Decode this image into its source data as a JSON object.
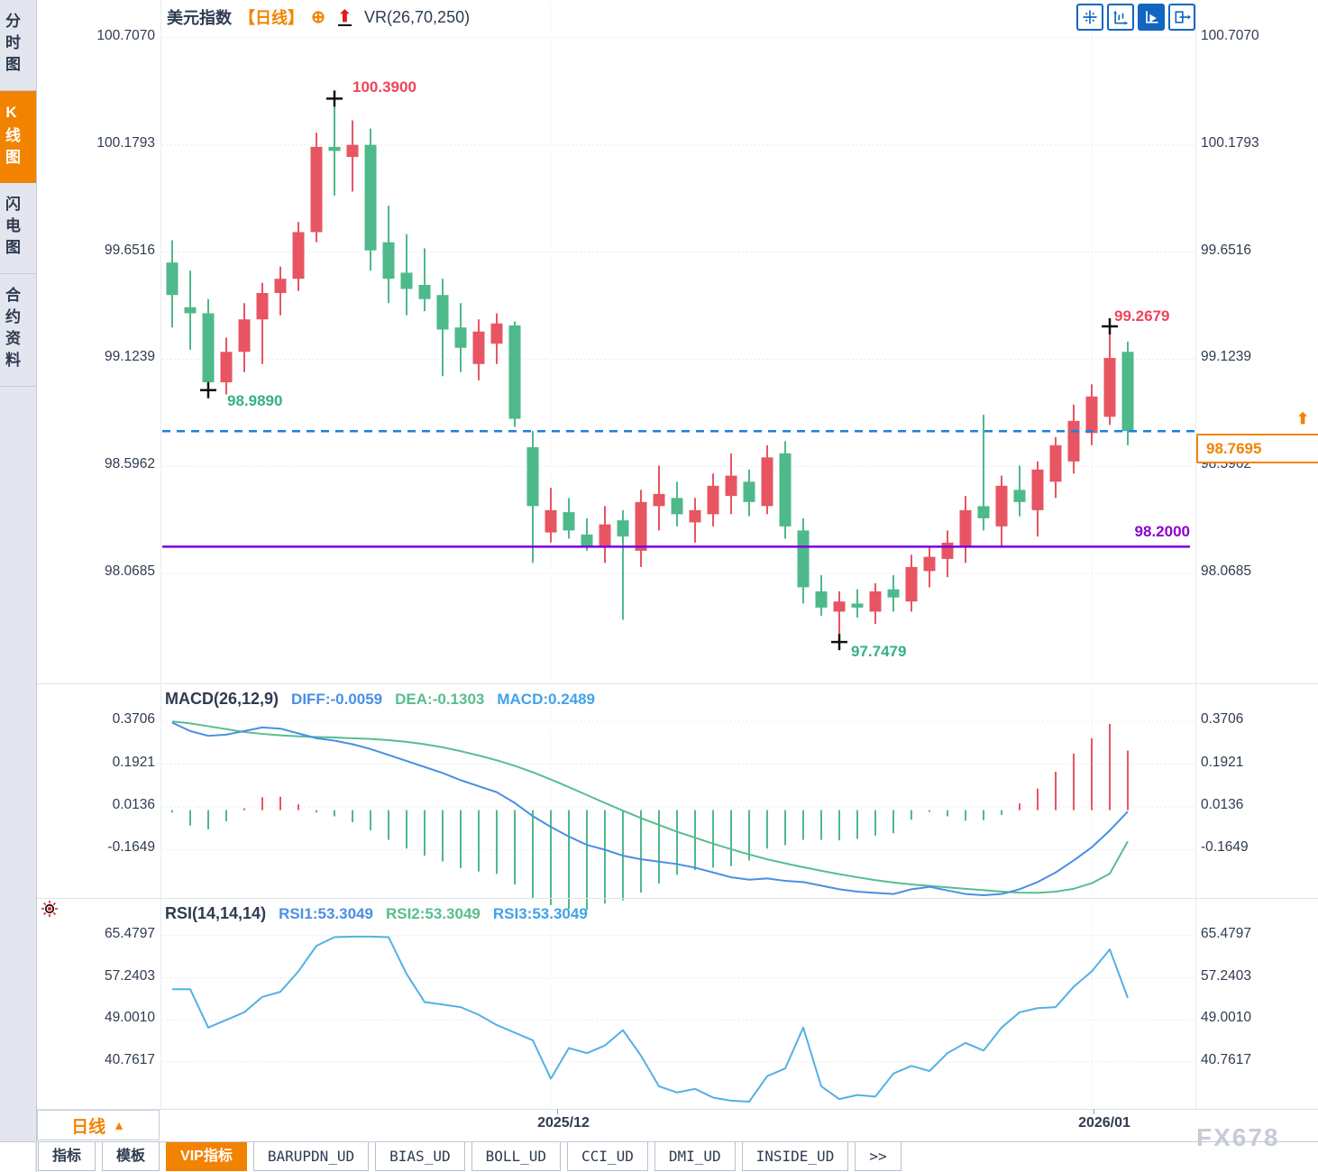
{
  "header": {
    "symbol": "美元指数",
    "period_tag": "【日线】",
    "add_icon": "⊕",
    "arrow_icon": "⬆",
    "indicator": "VR(26,70,250)"
  },
  "sidebar": {
    "items": [
      {
        "label": "分时图",
        "active": false
      },
      {
        "label": "K线图",
        "active": true
      },
      {
        "label": "闪电图",
        "active": false
      },
      {
        "label": "合约资料",
        "active": false
      }
    ]
  },
  "toolbar": {
    "icons": [
      "crosshair-move",
      "axis-zoom",
      "auto-fit",
      "pan-right"
    ],
    "active_index": 2
  },
  "price_axis": {
    "labels": [
      "100.7070",
      "100.1793",
      "99.6516",
      "99.1239",
      "98.5962",
      "98.0685"
    ]
  },
  "macd_panel": {
    "title": "MACD(26,12,9)",
    "diff_label": "DIFF:-0.0059",
    "dea_label": "DEA:-0.1303",
    "macd_label": "MACD:0.2489",
    "axis_labels": [
      "0.3706",
      "0.1921",
      "0.0136",
      "-0.1649"
    ]
  },
  "rsi_panel": {
    "title": "RSI(14,14,14)",
    "rsi1_label": "RSI1:53.3049",
    "rsi2_label": "RSI2:53.3049",
    "rsi3_label": "RSI3:53.3049",
    "axis_labels": [
      "65.4797",
      "57.2403",
      "49.0010",
      "40.7617"
    ]
  },
  "annotations": {
    "peak_high": "100.3900",
    "early_low": "98.9890",
    "trough_low": "97.7479",
    "recent_high": "99.2679",
    "support_level": "98.2000",
    "last_price": "98.7695",
    "price_arrow": "⬆"
  },
  "bottom": {
    "period": "日线",
    "period_arrow": "▲",
    "x_ticks": [
      "2025/12",
      "2026/01"
    ]
  },
  "tabs": [
    {
      "label": "指标",
      "active": false
    },
    {
      "label": "模板",
      "active": false
    },
    {
      "label": "VIP指标",
      "active": true
    },
    {
      "label": "BARUPDN_UD",
      "active": false
    },
    {
      "label": "BIAS_UD",
      "active": false
    },
    {
      "label": "BOLL_UD",
      "active": false
    },
    {
      "label": "CCI_UD",
      "active": false
    },
    {
      "label": "DMI_UD",
      "active": false
    },
    {
      "label": "INSIDE_UD",
      "active": false
    },
    {
      "label": ">>",
      "active": false
    }
  ],
  "watermark": "FX678",
  "colors": {
    "up": "#e85562",
    "down": "#4eb98b",
    "accent_orange": "#f28300",
    "last_price_blue": "#1a7fe8",
    "support_purple": "#7d00d8",
    "diff_blue": "#4a8fe3",
    "dea_green": "#57bd8f",
    "rsi_cyan": "#54b0e6",
    "grid": "#e4e4e4",
    "marker_black": "#111111"
  },
  "chart_data": [
    {
      "type": "candlestick",
      "title": "美元指数 日线",
      "ylabel": "price",
      "ylim": [
        97.6,
        100.85
      ],
      "gridlines": [
        100.707,
        100.1793,
        99.6516,
        99.1239,
        98.5962,
        98.0685
      ],
      "x_ticks": [
        "2025/12",
        "2026/01"
      ],
      "month_tick_indices": [
        21,
        51
      ],
      "last_price": 98.7695,
      "support_line": 98.2,
      "markers": [
        {
          "index": 2,
          "price": 98.989,
          "side": "low",
          "label": "98.9890"
        },
        {
          "index": 9,
          "price": 100.39,
          "side": "high",
          "label": "100.3900"
        },
        {
          "index": 37,
          "price": 97.7479,
          "side": "low",
          "label": "97.7479"
        },
        {
          "index": 52,
          "price": 99.2679,
          "side": "high",
          "label": "99.2679"
        }
      ],
      "ohlc": [
        [
          99.6,
          99.71,
          99.28,
          99.44
        ],
        [
          99.38,
          99.56,
          99.17,
          99.35
        ],
        [
          99.35,
          99.42,
          98.989,
          99.01
        ],
        [
          99.01,
          99.23,
          98.95,
          99.16
        ],
        [
          99.16,
          99.4,
          99.06,
          99.32
        ],
        [
          99.32,
          99.5,
          99.1,
          99.45
        ],
        [
          99.45,
          99.58,
          99.34,
          99.52
        ],
        [
          99.52,
          99.8,
          99.46,
          99.75
        ],
        [
          99.75,
          100.24,
          99.7,
          100.17
        ],
        [
          100.17,
          100.39,
          99.93,
          100.15
        ],
        [
          100.12,
          100.3,
          99.95,
          100.18
        ],
        [
          100.18,
          100.26,
          99.56,
          99.66
        ],
        [
          99.7,
          99.88,
          99.4,
          99.52
        ],
        [
          99.55,
          99.74,
          99.34,
          99.47
        ],
        [
          99.49,
          99.67,
          99.36,
          99.42
        ],
        [
          99.44,
          99.52,
          99.04,
          99.27
        ],
        [
          99.28,
          99.4,
          99.06,
          99.18
        ],
        [
          99.1,
          99.32,
          99.02,
          99.26
        ],
        [
          99.2,
          99.35,
          99.1,
          99.3
        ],
        [
          99.29,
          99.31,
          98.79,
          98.83
        ],
        [
          98.69,
          98.77,
          98.12,
          98.4
        ],
        [
          98.27,
          98.49,
          98.22,
          98.38
        ],
        [
          98.37,
          98.44,
          98.24,
          98.28
        ],
        [
          98.26,
          98.34,
          98.18,
          98.2
        ],
        [
          98.2,
          98.4,
          98.12,
          98.31
        ],
        [
          98.33,
          98.38,
          97.84,
          98.25
        ],
        [
          98.18,
          98.48,
          98.1,
          98.42
        ],
        [
          98.4,
          98.6,
          98.28,
          98.46
        ],
        [
          98.44,
          98.52,
          98.3,
          98.36
        ],
        [
          98.32,
          98.44,
          98.22,
          98.38
        ],
        [
          98.36,
          98.56,
          98.3,
          98.5
        ],
        [
          98.45,
          98.66,
          98.36,
          98.55
        ],
        [
          98.52,
          98.58,
          98.35,
          98.42
        ],
        [
          98.4,
          98.7,
          98.36,
          98.64
        ],
        [
          98.66,
          98.72,
          98.24,
          98.3
        ],
        [
          98.28,
          98.34,
          97.92,
          98.0
        ],
        [
          97.98,
          98.06,
          97.86,
          97.9
        ],
        [
          97.88,
          97.98,
          97.7479,
          97.93
        ],
        [
          97.92,
          97.99,
          97.85,
          97.9
        ],
        [
          97.88,
          98.02,
          97.82,
          97.98
        ],
        [
          97.99,
          98.06,
          97.88,
          97.95
        ],
        [
          97.93,
          98.16,
          97.88,
          98.1
        ],
        [
          98.08,
          98.2,
          98.0,
          98.15
        ],
        [
          98.14,
          98.28,
          98.05,
          98.22
        ],
        [
          98.2,
          98.45,
          98.12,
          98.38
        ],
        [
          98.4,
          98.85,
          98.28,
          98.34
        ],
        [
          98.3,
          98.55,
          98.2,
          98.5
        ],
        [
          98.48,
          98.6,
          98.35,
          98.42
        ],
        [
          98.38,
          98.62,
          98.25,
          98.58
        ],
        [
          98.52,
          98.74,
          98.44,
          98.7
        ],
        [
          98.62,
          98.9,
          98.56,
          98.82
        ],
        [
          98.76,
          99.0,
          98.7,
          98.94
        ],
        [
          98.84,
          99.2679,
          98.8,
          99.13
        ],
        [
          99.16,
          99.21,
          98.7,
          98.7695
        ]
      ]
    },
    {
      "type": "macd",
      "title": "MACD(26,12,9)",
      "gridlines": [
        0.3706,
        0.1921,
        0.0136,
        -0.1649
      ],
      "diff": [
        0.365,
        0.33,
        0.31,
        0.315,
        0.33,
        0.345,
        0.34,
        0.32,
        0.3,
        0.29,
        0.275,
        0.255,
        0.23,
        0.205,
        0.18,
        0.155,
        0.125,
        0.1,
        0.075,
        0.03,
        -0.025,
        -0.07,
        -0.11,
        -0.145,
        -0.165,
        -0.19,
        -0.205,
        -0.215,
        -0.225,
        -0.24,
        -0.26,
        -0.28,
        -0.29,
        -0.285,
        -0.295,
        -0.3,
        -0.315,
        -0.33,
        -0.34,
        -0.345,
        -0.35,
        -0.33,
        -0.32,
        -0.335,
        -0.35,
        -0.355,
        -0.35,
        -0.33,
        -0.3,
        -0.26,
        -0.21,
        -0.155,
        -0.085,
        -0.0059
      ],
      "dea": [
        0.37,
        0.362,
        0.35,
        0.338,
        0.326,
        0.318,
        0.312,
        0.308,
        0.305,
        0.303,
        0.3,
        0.297,
        0.292,
        0.285,
        0.275,
        0.262,
        0.246,
        0.228,
        0.208,
        0.185,
        0.158,
        0.128,
        0.096,
        0.063,
        0.03,
        -0.002,
        -0.033,
        -0.062,
        -0.09,
        -0.115,
        -0.14,
        -0.163,
        -0.185,
        -0.205,
        -0.222,
        -0.238,
        -0.253,
        -0.267,
        -0.28,
        -0.292,
        -0.302,
        -0.31,
        -0.316,
        -0.322,
        -0.328,
        -0.334,
        -0.34,
        -0.344,
        -0.345,
        -0.34,
        -0.328,
        -0.305,
        -0.265,
        -0.1303
      ],
      "hist_formula": "2*(diff-dea)",
      "last_values": {
        "diff": -0.0059,
        "dea": -0.1303,
        "macd": 0.2489
      }
    },
    {
      "type": "line",
      "title": "RSI(14,14,14)",
      "gridlines": [
        65.4797,
        57.2403,
        49.001,
        40.7617
      ],
      "values": [
        55.0,
        55.0,
        47.5,
        49.0,
        50.5,
        53.5,
        54.5,
        58.5,
        63.5,
        65.2,
        65.3,
        65.3,
        65.2,
        58.0,
        52.5,
        52.0,
        51.5,
        50.0,
        48.0,
        46.5,
        45.0,
        37.5,
        43.5,
        42.5,
        44.0,
        47.0,
        42.0,
        36.0,
        34.8,
        35.5,
        33.8,
        33.2,
        33.0,
        38.0,
        39.5,
        47.5,
        36.0,
        33.5,
        34.3,
        34.0,
        38.5,
        40.0,
        39.0,
        42.5,
        44.5,
        43.0,
        47.5,
        50.5,
        51.3,
        51.5,
        55.5,
        58.5,
        62.8,
        53.3049
      ],
      "last_values": {
        "rsi1": 53.3049,
        "rsi2": 53.3049,
        "rsi3": 53.3049
      }
    }
  ]
}
